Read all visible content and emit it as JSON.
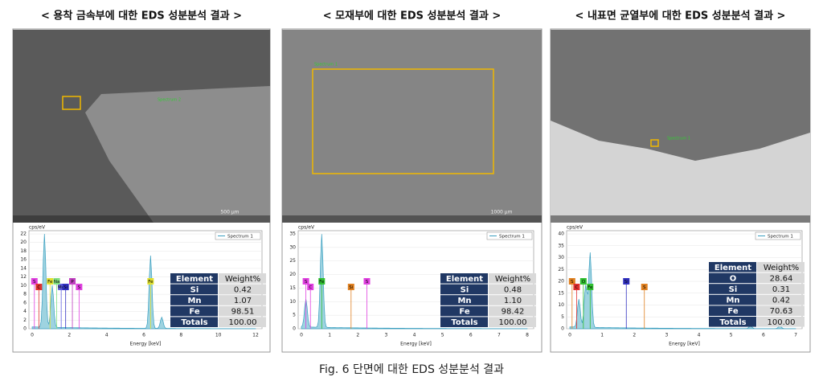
{
  "caption": "Fig. 6  단면에 대한 EDS 성분분석 결과",
  "panels": [
    {
      "title": "< 용착 금속부에 대한 EDS 성분분석 결과 >",
      "image_label": "Spectrum 2",
      "scale_bar": "500 µm",
      "y_unit": "cps/eV",
      "x_label": "Energy [keV]",
      "legend": "Spectrum 1",
      "yticks": [
        "0",
        "2",
        "4",
        "6",
        "8",
        "10",
        "12",
        "14",
        "16",
        "18",
        "20",
        "22"
      ],
      "xticks": [
        "0",
        "2",
        "4",
        "6",
        "8",
        "10",
        "12"
      ],
      "markers": [
        "S",
        "C",
        "Fe",
        "Mg",
        "Na",
        "Si",
        "P",
        "S",
        "Fe"
      ],
      "table": {
        "header": [
          "Element",
          "Weight%"
        ],
        "rows": [
          [
            "Si",
            "0.42"
          ],
          [
            "Mn",
            "1.07"
          ],
          [
            "Fe",
            "98.51"
          ],
          [
            "Totals",
            "100.00"
          ]
        ]
      }
    },
    {
      "title": "< 모재부에 대한 EDS 성분분석 결과 >",
      "image_label": "Spectrum 1",
      "scale_bar": "1000 µm",
      "y_unit": "cps/eV",
      "x_label": "Energy [keV]",
      "legend": "Spectrum 1",
      "yticks": [
        "0",
        "5",
        "10",
        "15",
        "20",
        "25",
        "30",
        "35"
      ],
      "xticks": [
        "0",
        "1",
        "2",
        "3",
        "4",
        "5",
        "6",
        "7",
        "8"
      ],
      "markers": [
        "S",
        "C",
        "Fe",
        "Si",
        "S"
      ],
      "table": {
        "header": [
          "Element",
          "Weight%"
        ],
        "rows": [
          [
            "Si",
            "0.48"
          ],
          [
            "Mn",
            "1.10"
          ],
          [
            "Fe",
            "98.42"
          ],
          [
            "Totals",
            "100.00"
          ]
        ]
      }
    },
    {
      "title": "< 내표면 균열부에 대한 EDS 성분분석 결과 >",
      "image_label": "Spectrum 1",
      "scale_bar": "",
      "y_unit": "cps/eV",
      "x_label": "Energy [keV]",
      "legend": "Spectrum 1",
      "yticks": [
        "0",
        "5",
        "10",
        "15",
        "20",
        "25",
        "30",
        "35",
        "40"
      ],
      "xticks": [
        "0",
        "1",
        "2",
        "3",
        "4",
        "5",
        "6",
        "7"
      ],
      "markers": [
        "S",
        "C",
        "O",
        "Fe",
        "Si",
        "S"
      ],
      "table": {
        "header": [
          "Element",
          "Weight%"
        ],
        "rows": [
          [
            "O",
            "28.64"
          ],
          [
            "Si",
            "0.31"
          ],
          [
            "Mn",
            "0.42"
          ],
          [
            "Fe",
            "70.63"
          ],
          [
            "Totals",
            "100.00"
          ]
        ]
      }
    }
  ]
}
